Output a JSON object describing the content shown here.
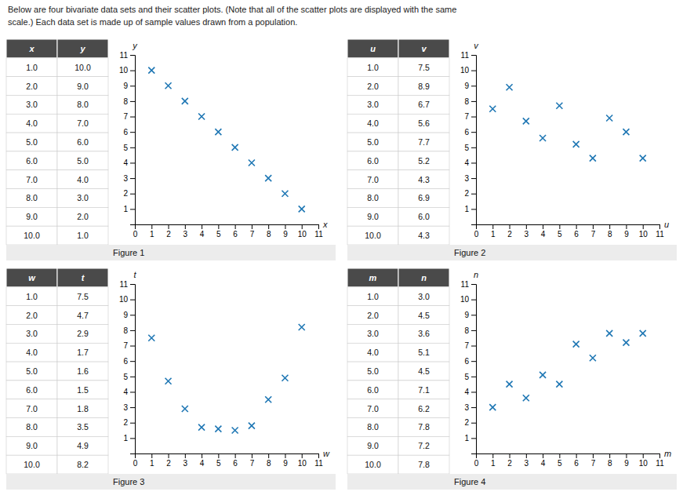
{
  "annotations": [
    "Below are four bivariate data sets and their scatter plots. (Note that all of the scatter plots are displayed with the same",
    "scale.) Each data set is made up of sample values drawn from a population."
  ],
  "chart_data": [
    {
      "type": "scatter",
      "title": "Figure 1",
      "x_label": "x",
      "y_label": "y",
      "marker": "x",
      "grid": false,
      "x": [
        1.0,
        2.0,
        3.0,
        4.0,
        5.0,
        6.0,
        7.0,
        8.0,
        9.0,
        10.0
      ],
      "x_labels": [
        "1.0",
        "2.0",
        "3.0",
        "4.0",
        "5.0",
        "6.0",
        "7.0",
        "8.0",
        "9.0",
        "10.0"
      ],
      "values": [
        10.0,
        9.0,
        8.0,
        7.0,
        6.0,
        5.0,
        4.0,
        3.0,
        2.0,
        1.0
      ],
      "value_labels": [
        "10.0",
        "9.0",
        "8.0",
        "7.0",
        "6.0",
        "5.0",
        "4.0",
        "3.0",
        "2.0",
        "1.0"
      ],
      "xlim": [
        0,
        11
      ],
      "ylim": [
        0,
        11
      ],
      "xticks": [
        0,
        1,
        2,
        3,
        4,
        5,
        6,
        7,
        8,
        9,
        10,
        11
      ],
      "yticks": [
        1,
        2,
        3,
        4,
        5,
        6,
        7,
        8,
        9,
        10,
        11
      ]
    },
    {
      "type": "scatter",
      "title": "Figure 2",
      "x_label": "u",
      "y_label": "v",
      "marker": "x",
      "grid": false,
      "x": [
        1.0,
        2.0,
        3.0,
        4.0,
        5.0,
        6.0,
        7.0,
        8.0,
        9.0,
        10.0
      ],
      "x_labels": [
        "1.0",
        "2.0",
        "3.0",
        "4.0",
        "5.0",
        "6.0",
        "7.0",
        "8.0",
        "9.0",
        "10.0"
      ],
      "values": [
        7.5,
        8.9,
        6.7,
        5.6,
        7.7,
        5.2,
        4.3,
        6.9,
        6.0,
        4.3
      ],
      "value_labels": [
        "7.5",
        "8.9",
        "6.7",
        "5.6",
        "7.7",
        "5.2",
        "4.3",
        "6.9",
        "6.0",
        "4.3"
      ],
      "xlim": [
        0,
        11
      ],
      "ylim": [
        0,
        11
      ],
      "xticks": [
        0,
        1,
        2,
        3,
        4,
        5,
        6,
        7,
        8,
        9,
        10,
        11
      ],
      "yticks": [
        1,
        2,
        3,
        4,
        5,
        6,
        7,
        8,
        9,
        10,
        11
      ]
    },
    {
      "type": "scatter",
      "title": "Figure 3",
      "x_label": "w",
      "y_label": "t",
      "marker": "x",
      "grid": false,
      "x": [
        1.0,
        2.0,
        3.0,
        4.0,
        5.0,
        6.0,
        7.0,
        8.0,
        9.0,
        10.0
      ],
      "x_labels": [
        "1.0",
        "2.0",
        "3.0",
        "4.0",
        "5.0",
        "6.0",
        "7.0",
        "8.0",
        "9.0",
        "10.0"
      ],
      "values": [
        7.5,
        4.7,
        2.9,
        1.7,
        1.6,
        1.5,
        1.8,
        3.5,
        4.9,
        8.2
      ],
      "value_labels": [
        "7.5",
        "4.7",
        "2.9",
        "1.7",
        "1.6",
        "1.5",
        "1.8",
        "3.5",
        "4.9",
        "8.2"
      ],
      "xlim": [
        0,
        11
      ],
      "ylim": [
        0,
        11
      ],
      "xticks": [
        0,
        1,
        2,
        3,
        4,
        5,
        6,
        7,
        8,
        9,
        10,
        11
      ],
      "yticks": [
        1,
        2,
        3,
        4,
        5,
        6,
        7,
        8,
        9,
        10,
        11
      ]
    },
    {
      "type": "scatter",
      "title": "Figure 4",
      "x_label": "m",
      "y_label": "n",
      "marker": "x",
      "grid": false,
      "x": [
        1.0,
        2.0,
        3.0,
        4.0,
        5.0,
        6.0,
        7.0,
        8.0,
        9.0,
        10.0
      ],
      "x_labels": [
        "1.0",
        "2.0",
        "3.0",
        "4.0",
        "5.0",
        "6.0",
        "7.0",
        "8.0",
        "9.0",
        "10.0"
      ],
      "values": [
        3.0,
        4.5,
        3.6,
        5.1,
        4.5,
        7.1,
        6.2,
        7.8,
        7.2,
        7.8
      ],
      "value_labels": [
        "3.0",
        "4.5",
        "3.6",
        "5.1",
        "4.5",
        "7.1",
        "6.2",
        "7.8",
        "7.2",
        "7.8"
      ],
      "xlim": [
        0,
        11
      ],
      "ylim": [
        0,
        11
      ],
      "xticks": [
        0,
        1,
        2,
        3,
        4,
        5,
        6,
        7,
        8,
        9,
        10,
        11
      ],
      "yticks": [
        1,
        2,
        3,
        4,
        5,
        6,
        7,
        8,
        9,
        10,
        11
      ]
    }
  ]
}
